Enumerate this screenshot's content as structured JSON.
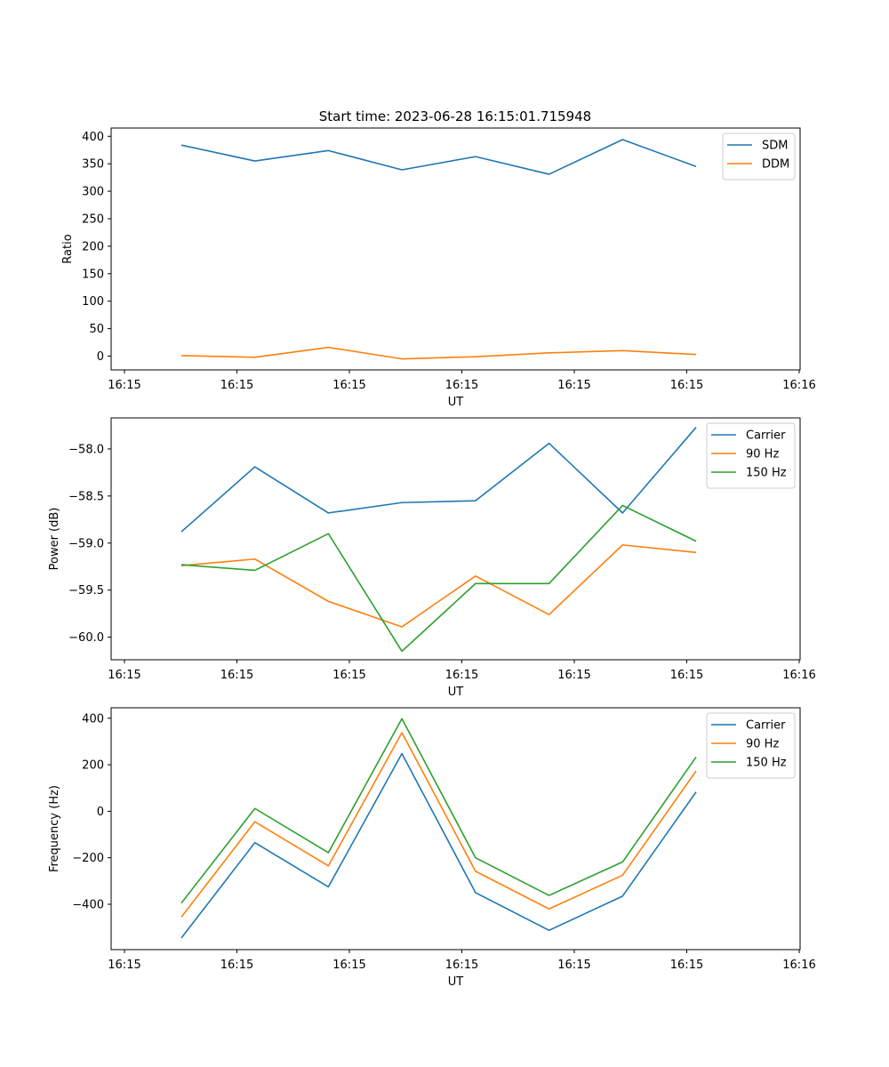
{
  "figure_title": "Start time: 2023-06-28 16:15:01.715948",
  "colors": {
    "blue": "#1f77b4",
    "orange": "#ff7f0e",
    "green": "#2ca02c"
  },
  "chart_data": [
    {
      "type": "line",
      "title": "Start time: 2023-06-28 16:15:01.715948",
      "xlabel": "UT",
      "ylabel": "Ratio",
      "x_tick_labels": [
        "16:15",
        "16:15",
        "16:15",
        "16:15",
        "16:15",
        "16:15",
        "16:16"
      ],
      "y_ticks": [
        0,
        50,
        100,
        150,
        200,
        250,
        300,
        350,
        400
      ],
      "y_tick_labels": [
        "0",
        "50",
        "100",
        "150",
        "200",
        "250",
        "300",
        "350",
        "400"
      ],
      "ylim": [
        -25,
        415
      ],
      "legend_position": "top-right",
      "grid": false,
      "series": [
        {
          "name": "SDM",
          "color": "#1f77b4",
          "values": [
            384,
            355,
            374,
            339,
            363,
            331,
            394,
            345
          ]
        },
        {
          "name": "DDM",
          "color": "#ff7f0e",
          "values": [
            1,
            -2,
            16,
            -5,
            -1,
            6,
            10,
            3
          ]
        }
      ]
    },
    {
      "type": "line",
      "title": "",
      "xlabel": "UT",
      "ylabel": "Power (dB)",
      "x_tick_labels": [
        "16:15",
        "16:15",
        "16:15",
        "16:15",
        "16:15",
        "16:15",
        "16:16"
      ],
      "y_ticks": [
        -60.0,
        -59.5,
        -59.0,
        -58.5,
        -58.0
      ],
      "y_tick_labels": [
        "−60.0",
        "−59.5",
        "−59.0",
        "−58.5",
        "−58.0"
      ],
      "ylim": [
        -60.24,
        -57.67
      ],
      "legend_position": "top-right",
      "grid": false,
      "series": [
        {
          "name": "Carrier",
          "color": "#1f77b4",
          "values": [
            -58.88,
            -58.19,
            -58.68,
            -58.57,
            -58.55,
            -57.94,
            -58.68,
            -57.77
          ]
        },
        {
          "name": "90 Hz",
          "color": "#ff7f0e",
          "values": [
            -59.24,
            -59.17,
            -59.62,
            -59.89,
            -59.35,
            -59.76,
            -59.02,
            -59.1
          ]
        },
        {
          "name": "150 Hz",
          "color": "#2ca02c",
          "values": [
            -59.23,
            -59.29,
            -58.9,
            -60.15,
            -59.43,
            -59.43,
            -58.6,
            -58.98
          ]
        }
      ]
    },
    {
      "type": "line",
      "title": "",
      "xlabel": "UT",
      "ylabel": "Frequency (Hz)",
      "x_tick_labels": [
        "16:15",
        "16:15",
        "16:15",
        "16:15",
        "16:15",
        "16:15",
        "16:16"
      ],
      "y_ticks": [
        -400,
        -200,
        0,
        200,
        400
      ],
      "y_tick_labels": [
        "−400",
        "−200",
        "0",
        "200",
        "400"
      ],
      "ylim": [
        -595,
        445
      ],
      "legend_position": "top-right",
      "grid": false,
      "series": [
        {
          "name": "Carrier",
          "color": "#1f77b4",
          "values": [
            -545,
            -135,
            -325,
            248,
            -350,
            -512,
            -365,
            83
          ]
        },
        {
          "name": "90 Hz",
          "color": "#ff7f0e",
          "values": [
            -455,
            -45,
            -235,
            338,
            -258,
            -420,
            -275,
            173
          ]
        },
        {
          "name": "150 Hz",
          "color": "#2ca02c",
          "values": [
            -395,
            12,
            -178,
            398,
            -200,
            -362,
            -218,
            233
          ]
        }
      ]
    }
  ]
}
